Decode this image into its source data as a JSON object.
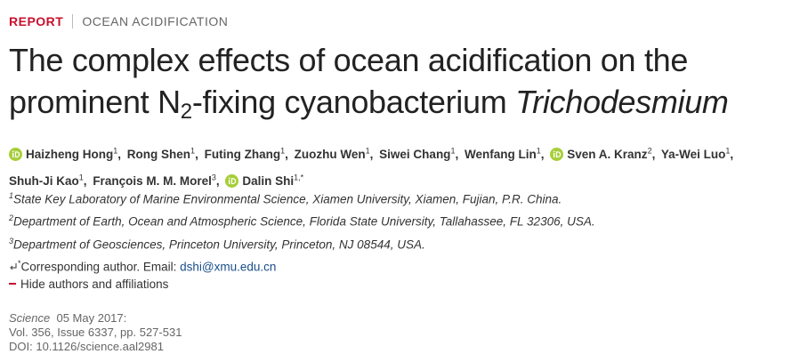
{
  "header": {
    "section": "REPORT",
    "category": "OCEAN ACIDIFICATION"
  },
  "title": {
    "line1": "The complex effects of ocean acidification on the",
    "line2_start": "prominent N",
    "subscript": "2",
    "line2_middle": "-fixing cyanobacterium ",
    "italic": "Trichodesmium"
  },
  "authors": [
    {
      "name": "Haizheng Hong",
      "affiliation": "1",
      "separator": ",",
      "orcid": true
    },
    {
      "name": "Rong Shen",
      "affiliation": "1",
      "separator": ",",
      "orcid": false
    },
    {
      "name": "Futing Zhang",
      "affiliation": "1",
      "separator": ",",
      "orcid": false
    },
    {
      "name": "Zuozhu Wen",
      "affiliation": "1",
      "separator": ",",
      "orcid": false
    },
    {
      "name": "Siwei Chang",
      "affiliation": "1",
      "separator": ",",
      "orcid": false
    },
    {
      "name": "Wenfang Lin",
      "affiliation": "1",
      "separator": ",",
      "orcid": false
    },
    {
      "name": "Sven A. Kranz",
      "affiliation": "2",
      "separator": ",",
      "orcid": true
    },
    {
      "name": "Ya-Wei Luo",
      "affiliation": "1",
      "separator": ",",
      "orcid": false
    },
    {
      "name": "Shuh-Ji Kao",
      "affiliation": "1",
      "separator": ",",
      "orcid": false
    },
    {
      "name": "François M. M. Morel",
      "affiliation": "3",
      "separator": ",",
      "orcid": false
    },
    {
      "name": "Dalin Shi",
      "affiliation": "1,*",
      "orcid": true
    }
  ],
  "affiliations": [
    {
      "number": "1",
      "text": "State Key Laboratory of Marine Environmental Science, Xiamen University, Xiamen, Fujian, P.R. China."
    },
    {
      "number": "2",
      "text": "Department of Earth, Ocean and Atmospheric Science, Florida State University, Tallahassee, FL 32306, USA."
    },
    {
      "number": "3",
      "text": "Department of Geosciences, Princeton University, Princeton, NJ 08544, USA."
    }
  ],
  "corresponding": {
    "mark": "*",
    "text": "Corresponding author. Email: ",
    "email": "dshi@xmu.edu.cn"
  },
  "toggle": "Hide authors and affiliations",
  "citation": {
    "journal": "Science",
    "date": "05 May 2017:",
    "volume": "Vol. 356, Issue 6337, pp. 527-531",
    "doi": "DOI: 10.1126/science.aal2981"
  }
}
